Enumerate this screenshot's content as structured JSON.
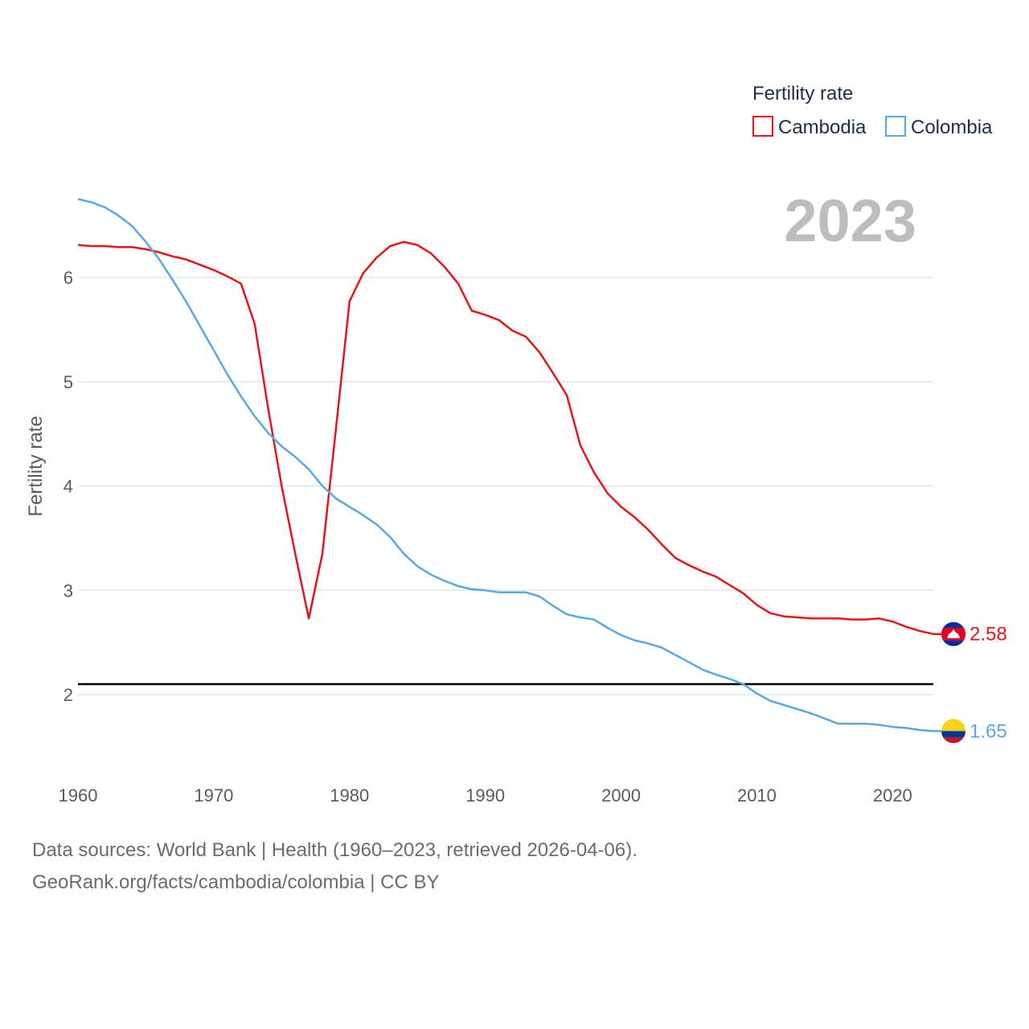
{
  "chart_data": {
    "type": "line",
    "title": "2023",
    "xlabel": "",
    "ylabel": "Fertility rate",
    "xlim": [
      1960,
      2023
    ],
    "ylim": [
      1.4,
      6.85
    ],
    "x_ticks": [
      1960,
      1970,
      1980,
      1990,
      2000,
      2010,
      2020
    ],
    "y_ticks": [
      2,
      3,
      4,
      5,
      6
    ],
    "reference_line": 2.1,
    "legend": {
      "title": "Fertility rate",
      "placement": "top-right"
    },
    "x": [
      1960,
      1961,
      1962,
      1963,
      1964,
      1965,
      1966,
      1967,
      1968,
      1969,
      1970,
      1971,
      1972,
      1973,
      1974,
      1975,
      1976,
      1977,
      1978,
      1979,
      1980,
      1981,
      1982,
      1983,
      1984,
      1985,
      1986,
      1987,
      1988,
      1989,
      1990,
      1991,
      1992,
      1993,
      1994,
      1995,
      1996,
      1997,
      1998,
      1999,
      2000,
      2001,
      2002,
      2003,
      2004,
      2005,
      2006,
      2007,
      2008,
      2009,
      2010,
      2011,
      2012,
      2013,
      2014,
      2015,
      2016,
      2017,
      2018,
      2019,
      2020,
      2021,
      2022,
      2023
    ],
    "series": [
      {
        "name": "Cambodia",
        "color": "#e8141c",
        "end_label": "2.58",
        "values": [
          6.31,
          6.3,
          6.3,
          6.29,
          6.29,
          6.27,
          6.24,
          6.2,
          6.17,
          6.12,
          6.07,
          6.01,
          5.94,
          5.56,
          4.75,
          4.0,
          3.35,
          2.73,
          3.35,
          4.55,
          5.77,
          6.04,
          6.19,
          6.3,
          6.34,
          6.31,
          6.23,
          6.1,
          5.94,
          5.68,
          5.64,
          5.59,
          5.49,
          5.43,
          5.28,
          5.08,
          4.87,
          4.39,
          4.13,
          3.93,
          3.8,
          3.7,
          3.58,
          3.44,
          3.31,
          3.24,
          3.18,
          3.13,
          3.05,
          2.97,
          2.86,
          2.78,
          2.75,
          2.74,
          2.73,
          2.73,
          2.73,
          2.72,
          2.72,
          2.73,
          2.7,
          2.65,
          2.61,
          2.58
        ]
      },
      {
        "name": "Colombia",
        "color": "#5aa7e8",
        "end_label": "1.65",
        "values": [
          6.75,
          6.72,
          6.67,
          6.59,
          6.49,
          6.34,
          6.17,
          5.97,
          5.76,
          5.53,
          5.3,
          5.07,
          4.86,
          4.67,
          4.51,
          4.38,
          4.28,
          4.16,
          4.0,
          3.88,
          3.8,
          3.72,
          3.63,
          3.51,
          3.35,
          3.23,
          3.15,
          3.09,
          3.04,
          3.01,
          3.0,
          2.98,
          2.98,
          2.98,
          2.94,
          2.85,
          2.77,
          2.74,
          2.72,
          2.64,
          2.57,
          2.52,
          2.49,
          2.45,
          2.38,
          2.31,
          2.24,
          2.19,
          2.15,
          2.1,
          2.01,
          1.94,
          1.9,
          1.86,
          1.82,
          1.77,
          1.72,
          1.72,
          1.72,
          1.71,
          1.69,
          1.68,
          1.66,
          1.65
        ]
      }
    ]
  },
  "footer": {
    "line1": "Data sources: World Bank | Health (1960–2023, retrieved 2026-04-06).",
    "line2": "GeoRank.org/facts/cambodia/colombia | CC BY"
  }
}
